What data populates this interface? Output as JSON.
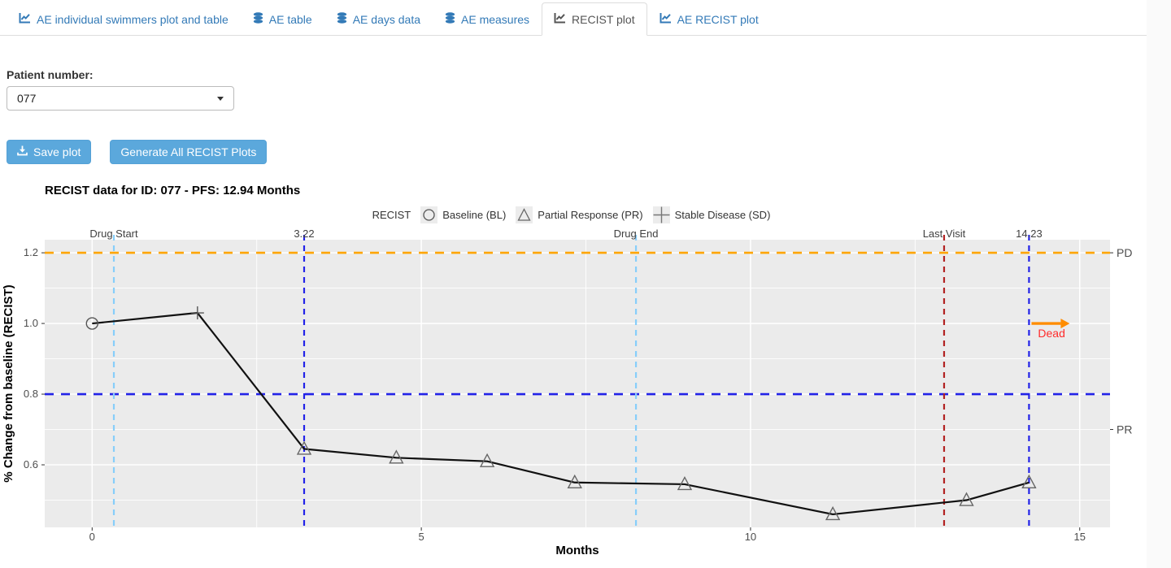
{
  "tabs": [
    {
      "label": "AE individual swimmers plot and table",
      "icon": "chart-line-icon",
      "active": false
    },
    {
      "label": "AE table",
      "icon": "database-icon",
      "active": false
    },
    {
      "label": "AE days data",
      "icon": "database-icon",
      "active": false
    },
    {
      "label": "AE measures",
      "icon": "database-icon",
      "active": false
    },
    {
      "label": "RECIST plot",
      "icon": "chart-line-icon",
      "active": true
    },
    {
      "label": "AE RECIST plot",
      "icon": "chart-line-icon",
      "active": false
    }
  ],
  "controls": {
    "patient_label": "Patient number:",
    "patient_value": "077",
    "save_button": "Save plot",
    "generate_button": "Generate All RECIST Plots"
  },
  "colors": {
    "tab_link_blue": "#337ab7",
    "button_blue": "#5BA8DC",
    "panel_gray": "#EBEBEB"
  },
  "chart_data": {
    "type": "line",
    "title": "RECIST data for ID: 077 - PFS: 12.94 Months",
    "legend_title": "RECIST",
    "legend": [
      {
        "symbol": "circle",
        "label": "Baseline (BL)"
      },
      {
        "symbol": "triangle",
        "label": "Partial Response (PR)"
      },
      {
        "symbol": "plus",
        "label": "Stable Disease (SD)"
      }
    ],
    "xlabel": "Months",
    "ylabel": "% Change from baseline (RECIST)",
    "xlim": [
      -0.72,
      15.46
    ],
    "ylim": [
      0.423,
      1.237
    ],
    "xticks": [
      0,
      5,
      10,
      15
    ],
    "xtick_labels": [
      "0",
      "5",
      "10",
      "15"
    ],
    "yticks": [
      0.6,
      0.8,
      1.0,
      1.2
    ],
    "ytick_labels": [
      "0.6",
      "0.8",
      "1.0",
      "1.2"
    ],
    "minor_xticks": [
      2.5,
      7.5,
      12.5
    ],
    "minor_yticks": [
      0.5,
      0.7,
      0.9,
      1.1
    ],
    "line_color": "#111111",
    "marker_color": "#555555",
    "points": [
      {
        "x": 0,
        "y": 1.0,
        "marker": "circle"
      },
      {
        "x": 1.6,
        "y": 1.03,
        "marker": "plus"
      },
      {
        "x": 3.22,
        "y": 0.645,
        "marker": "triangle"
      },
      {
        "x": 4.62,
        "y": 0.62,
        "marker": "triangle"
      },
      {
        "x": 6.0,
        "y": 0.61,
        "marker": "triangle"
      },
      {
        "x": 7.33,
        "y": 0.55,
        "marker": "triangle"
      },
      {
        "x": 9.0,
        "y": 0.545,
        "marker": "triangle"
      },
      {
        "x": 11.25,
        "y": 0.46,
        "marker": "triangle"
      },
      {
        "x": 13.28,
        "y": 0.5,
        "marker": "triangle"
      },
      {
        "x": 14.23,
        "y": 0.55,
        "marker": "triangle"
      }
    ],
    "vlines": [
      {
        "x": 0.33,
        "label": "Drug Start",
        "color": "#87CEFA"
      },
      {
        "x": 3.22,
        "label": "3.22",
        "color": "#2222E8"
      },
      {
        "x": 8.26,
        "label": "Drug End",
        "color": "#87CEFA"
      },
      {
        "x": 12.94,
        "label": "Last Visit",
        "color": "#B22222"
      },
      {
        "x": 14.23,
        "label": "14.23",
        "color": "#2222E8"
      }
    ],
    "hlines": [
      {
        "y": 1.2,
        "color": "#FFA500"
      },
      {
        "y": 0.8,
        "color": "#2222E8"
      }
    ],
    "right_labels": [
      {
        "y": 1.2,
        "label": "PD"
      },
      {
        "y": 0.7,
        "label": "PR"
      }
    ],
    "annotation": {
      "label": "Dead",
      "x": 14.23,
      "y": 1.0,
      "arrow_color": "#FF8C00",
      "text_color": "#FF2B2B"
    }
  }
}
